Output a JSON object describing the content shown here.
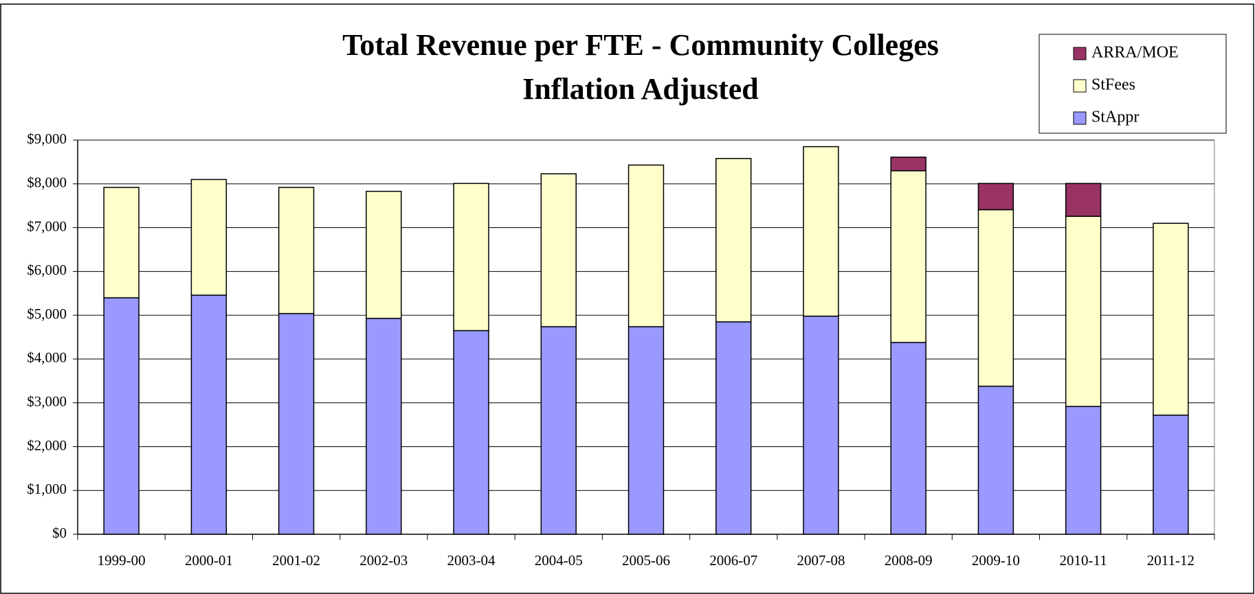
{
  "chart_data": {
    "type": "stacked_bar",
    "title": "Total Revenue per FTE - Community Colleges",
    "subtitle": "Inflation Adjusted",
    "categories": [
      "1999-00",
      "2000-01",
      "2001-02",
      "2002-03",
      "2003-04",
      "2004-05",
      "2005-06",
      "2006-07",
      "2007-08",
      "2008-09",
      "2009-10",
      "2010-11",
      "2011-12"
    ],
    "series": [
      {
        "name": "StAppr",
        "color": "#9999ff",
        "values": [
          5400,
          5460,
          5040,
          4930,
          4650,
          4740,
          4740,
          4850,
          4980,
          4380,
          3380,
          2920,
          2720
        ]
      },
      {
        "name": "StFees",
        "color": "#ffffcc",
        "values": [
          2520,
          2640,
          2880,
          2900,
          3360,
          3490,
          3690,
          3730,
          3870,
          3920,
          4030,
          4340,
          4380
        ]
      },
      {
        "name": "ARRA/MOE",
        "color": "#993366",
        "values": [
          0,
          0,
          0,
          0,
          0,
          0,
          0,
          0,
          0,
          310,
          600,
          750,
          0
        ]
      }
    ],
    "ylim": [
      0,
      9000
    ],
    "yticks": [
      {
        "value": 0,
        "label": "$0"
      },
      {
        "value": 1000,
        "label": "$1,000"
      },
      {
        "value": 2000,
        "label": "$2,000"
      },
      {
        "value": 3000,
        "label": "$3,000"
      },
      {
        "value": 4000,
        "label": "$4,000"
      },
      {
        "value": 5000,
        "label": "$5,000"
      },
      {
        "value": 6000,
        "label": "$6,000"
      },
      {
        "value": 7000,
        "label": "$7,000"
      },
      {
        "value": 8000,
        "label": "$8,000"
      },
      {
        "value": 9000,
        "label": "$9,000"
      }
    ],
    "grid": true,
    "legend": "top-right"
  }
}
